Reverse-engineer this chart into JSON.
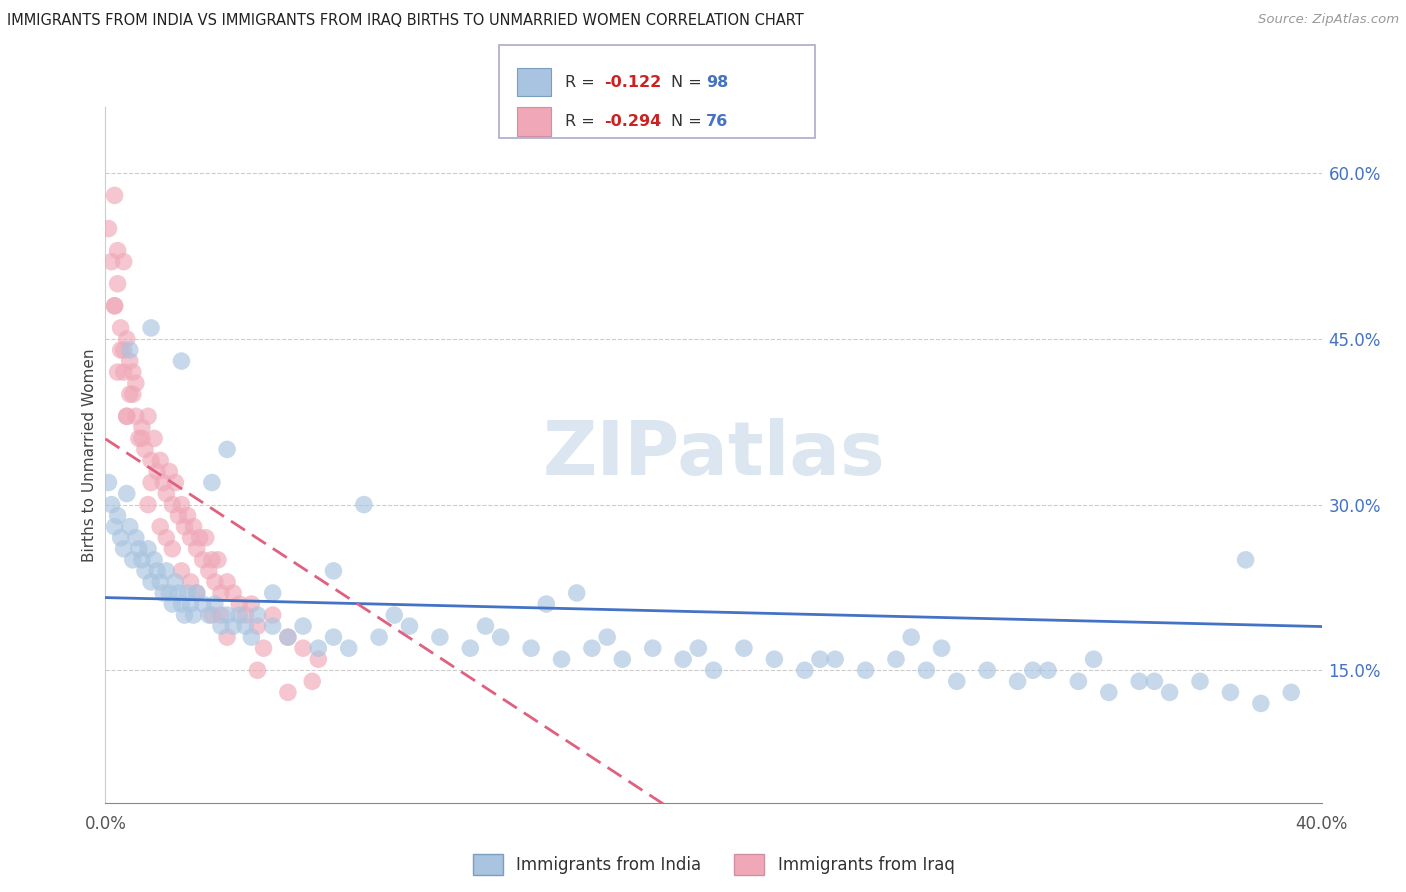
{
  "title": "IMMIGRANTS FROM INDIA VS IMMIGRANTS FROM IRAQ BIRTHS TO UNMARRIED WOMEN CORRELATION CHART",
  "source": "Source: ZipAtlas.com",
  "ylabel": "Births to Unmarried Women",
  "yaxis_labels": [
    "60.0%",
    "45.0%",
    "30.0%",
    "15.0%"
  ],
  "yaxis_values": [
    0.6,
    0.45,
    0.3,
    0.15
  ],
  "xlim": [
    0.0,
    0.4
  ],
  "ylim": [
    0.03,
    0.66
  ],
  "color_india": "#a8c4e0",
  "color_iraq": "#f0a8b8",
  "color_india_line": "#4472c4",
  "color_iraq_line": "#e06080",
  "watermark_color": "#dce6f1",
  "india_R": -0.122,
  "india_N": 98,
  "iraq_R": -0.294,
  "iraq_N": 76,
  "india_x": [
    0.001,
    0.002,
    0.003,
    0.004,
    0.005,
    0.006,
    0.007,
    0.008,
    0.009,
    0.01,
    0.011,
    0.012,
    0.013,
    0.014,
    0.015,
    0.016,
    0.017,
    0.018,
    0.019,
    0.02,
    0.021,
    0.022,
    0.023,
    0.024,
    0.025,
    0.026,
    0.027,
    0.028,
    0.029,
    0.03,
    0.032,
    0.034,
    0.036,
    0.038,
    0.04,
    0.042,
    0.044,
    0.046,
    0.048,
    0.05,
    0.055,
    0.06,
    0.065,
    0.07,
    0.075,
    0.08,
    0.09,
    0.1,
    0.11,
    0.12,
    0.13,
    0.14,
    0.15,
    0.16,
    0.17,
    0.18,
    0.19,
    0.2,
    0.21,
    0.22,
    0.23,
    0.24,
    0.25,
    0.26,
    0.27,
    0.28,
    0.29,
    0.3,
    0.31,
    0.32,
    0.33,
    0.34,
    0.35,
    0.36,
    0.37,
    0.38,
    0.39,
    0.008,
    0.015,
    0.025,
    0.035,
    0.055,
    0.075,
    0.095,
    0.125,
    0.145,
    0.165,
    0.195,
    0.235,
    0.265,
    0.305,
    0.345,
    0.375,
    0.04,
    0.085,
    0.155,
    0.275,
    0.325
  ],
  "india_y": [
    0.32,
    0.3,
    0.28,
    0.29,
    0.27,
    0.26,
    0.31,
    0.28,
    0.25,
    0.27,
    0.26,
    0.25,
    0.24,
    0.26,
    0.23,
    0.25,
    0.24,
    0.23,
    0.22,
    0.24,
    0.22,
    0.21,
    0.23,
    0.22,
    0.21,
    0.2,
    0.22,
    0.21,
    0.2,
    0.22,
    0.21,
    0.2,
    0.21,
    0.19,
    0.2,
    0.19,
    0.2,
    0.19,
    0.18,
    0.2,
    0.19,
    0.18,
    0.19,
    0.17,
    0.18,
    0.17,
    0.18,
    0.19,
    0.18,
    0.17,
    0.18,
    0.17,
    0.16,
    0.17,
    0.16,
    0.17,
    0.16,
    0.15,
    0.17,
    0.16,
    0.15,
    0.16,
    0.15,
    0.16,
    0.15,
    0.14,
    0.15,
    0.14,
    0.15,
    0.14,
    0.13,
    0.14,
    0.13,
    0.14,
    0.13,
    0.12,
    0.13,
    0.44,
    0.46,
    0.43,
    0.32,
    0.22,
    0.24,
    0.2,
    0.19,
    0.21,
    0.18,
    0.17,
    0.16,
    0.18,
    0.15,
    0.14,
    0.25,
    0.35,
    0.3,
    0.22,
    0.17,
    0.16
  ],
  "iraq_x": [
    0.001,
    0.002,
    0.003,
    0.003,
    0.004,
    0.004,
    0.005,
    0.005,
    0.006,
    0.006,
    0.007,
    0.007,
    0.008,
    0.008,
    0.009,
    0.01,
    0.01,
    0.011,
    0.012,
    0.013,
    0.014,
    0.015,
    0.016,
    0.017,
    0.018,
    0.019,
    0.02,
    0.021,
    0.022,
    0.023,
    0.024,
    0.025,
    0.026,
    0.027,
    0.028,
    0.029,
    0.03,
    0.031,
    0.032,
    0.033,
    0.034,
    0.035,
    0.036,
    0.037,
    0.038,
    0.04,
    0.042,
    0.044,
    0.046,
    0.048,
    0.05,
    0.055,
    0.06,
    0.065,
    0.07,
    0.003,
    0.006,
    0.009,
    0.012,
    0.015,
    0.018,
    0.022,
    0.025,
    0.03,
    0.035,
    0.04,
    0.05,
    0.06,
    0.004,
    0.007,
    0.014,
    0.02,
    0.028,
    0.038,
    0.052,
    0.068
  ],
  "iraq_y": [
    0.55,
    0.52,
    0.58,
    0.48,
    0.5,
    0.53,
    0.46,
    0.44,
    0.52,
    0.42,
    0.45,
    0.38,
    0.43,
    0.4,
    0.42,
    0.38,
    0.41,
    0.36,
    0.37,
    0.35,
    0.38,
    0.34,
    0.36,
    0.33,
    0.34,
    0.32,
    0.31,
    0.33,
    0.3,
    0.32,
    0.29,
    0.3,
    0.28,
    0.29,
    0.27,
    0.28,
    0.26,
    0.27,
    0.25,
    0.27,
    0.24,
    0.25,
    0.23,
    0.25,
    0.22,
    0.23,
    0.22,
    0.21,
    0.2,
    0.21,
    0.19,
    0.2,
    0.18,
    0.17,
    0.16,
    0.48,
    0.44,
    0.4,
    0.36,
    0.32,
    0.28,
    0.26,
    0.24,
    0.22,
    0.2,
    0.18,
    0.15,
    0.13,
    0.42,
    0.38,
    0.3,
    0.27,
    0.23,
    0.2,
    0.17,
    0.14
  ]
}
